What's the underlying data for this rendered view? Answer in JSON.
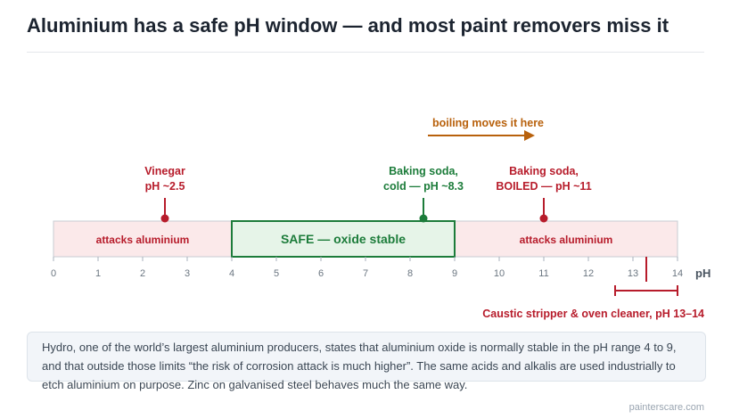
{
  "title": "Aluminium has a safe pH window — and most paint removers miss it",
  "colors": {
    "danger": "#b71c2b",
    "danger_fill": "#fbe9ea",
    "safe": "#1c7c3a",
    "safe_fill": "#e6f4e8",
    "arrow": "#b8610c",
    "axis": "#c7ccd3"
  },
  "scale": {
    "min": 0,
    "max": 14,
    "ticks": [
      "0",
      "1",
      "2",
      "3",
      "4",
      "5",
      "6",
      "7",
      "8",
      "9",
      "10",
      "11",
      "12",
      "13",
      "14"
    ],
    "unit_label": "pH"
  },
  "zones": [
    {
      "name": "attack-zone-acid",
      "from": 0,
      "to": 4,
      "label": "attacks aluminium",
      "kind": "danger"
    },
    {
      "name": "safe-zone",
      "from": 4,
      "to": 9,
      "label": "SAFE — oxide stable",
      "kind": "safe"
    },
    {
      "name": "attack-zone-alkali",
      "from": 9,
      "to": 14,
      "label": "attacks aluminium",
      "kind": "danger"
    }
  ],
  "markers": [
    {
      "name": "vinegar-marker",
      "ph": 2.5,
      "lines": [
        "Vinegar",
        "pH ~2.5"
      ],
      "kind": "danger"
    },
    {
      "name": "baking-soda-cold-marker",
      "ph": 8.3,
      "lines": [
        "Baking soda,",
        "cold — pH ~8.3"
      ],
      "kind": "safe"
    },
    {
      "name": "baking-soda-boiled-marker",
      "ph": 11,
      "lines": [
        "Baking soda,",
        "BOILED — pH ~11"
      ],
      "kind": "danger"
    }
  ],
  "shift": {
    "from": 8.5,
    "to": 10.8,
    "label": "boiling moves it here"
  },
  "range": {
    "from": 12.6,
    "to": 14,
    "mark": 13.3,
    "label": "Caustic stripper & oven cleaner, pH 13–14"
  },
  "note": "Hydro, one of the world’s largest aluminium producers, states that aluminium oxide is normally stable in the pH range 4 to 9, and that outside those limits “the risk of corrosion attack is much higher”. The same acids and alkalis are used industrially to etch aluminium on purpose. Zinc on galvanised steel behaves much the same way.",
  "credit": "painterscare.com"
}
